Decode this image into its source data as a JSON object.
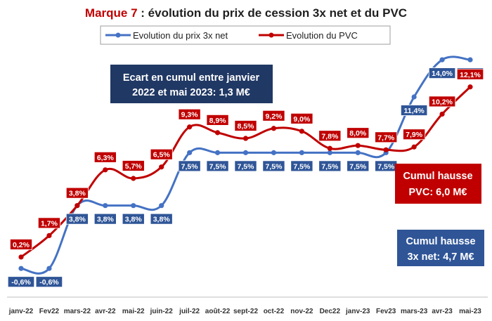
{
  "header": {
    "title_brand": "Marque 7",
    "title_rest": " : évolution du prix de cession 3x net et du PVC"
  },
  "legend": {
    "series1": "Evolution du prix 3x net",
    "series2": "Evolution du PVC"
  },
  "boxes": {
    "ecart_line1": "Ecart en cumul entre janvier",
    "ecart_line2": "2022 et mai 2023: 1,3 M€",
    "pvc_line1": "Cumul hausse",
    "pvc_line2": "PVC: 6,0 M€",
    "net_line1": "Cumul hausse",
    "net_line2": "3x net: 4,7 M€"
  },
  "colors": {
    "blue": "#4472c4",
    "blue_label": "#2f5597",
    "red": "#c00000",
    "navy_box": "#203864"
  },
  "chart_data": {
    "type": "line",
    "categories": [
      "janv-22",
      "Fev22",
      "mars-22",
      "avr-22",
      "mai-22",
      "juin-22",
      "juil-22",
      "août-22",
      "sept-22",
      "oct-22",
      "nov-22",
      "Dec22",
      "janv-23",
      "Fev23",
      "mars-23",
      "avr-23",
      "mai-23"
    ],
    "series": [
      {
        "name": "Evolution du prix 3x net",
        "color": "#4472c4",
        "values": [
          -0.6,
          -0.6,
          3.8,
          3.8,
          3.8,
          3.8,
          7.5,
          7.5,
          7.5,
          7.5,
          7.5,
          7.5,
          7.5,
          7.5,
          11.4,
          14.0,
          14.0
        ],
        "labels": [
          "-0,6%",
          "-0,6%",
          "3,8%",
          "3,8%",
          "3,8%",
          "3,8%",
          "7,5%",
          "7,5%",
          "7,5%",
          "7,5%",
          "7,5%",
          "7,5%",
          "7,5%",
          "7,5%",
          "11,4%",
          "14,0%",
          "14,0%"
        ]
      },
      {
        "name": "Evolution du PVC",
        "color": "#c00000",
        "values": [
          0.2,
          1.7,
          3.8,
          6.3,
          5.7,
          6.5,
          9.3,
          8.9,
          8.5,
          9.2,
          9.0,
          7.8,
          8.0,
          7.7,
          7.9,
          10.2,
          12.1
        ],
        "labels": [
          "0,2%",
          "1,7%",
          "3,8%",
          "6,3%",
          "5,7%",
          "6,5%",
          "9,3%",
          "8,9%",
          "8,5%",
          "9,2%",
          "9,0%",
          "7,8%",
          "8,0%",
          "7,7%",
          "7,9%",
          "10,2%",
          "12,1%"
        ]
      }
    ]
  }
}
